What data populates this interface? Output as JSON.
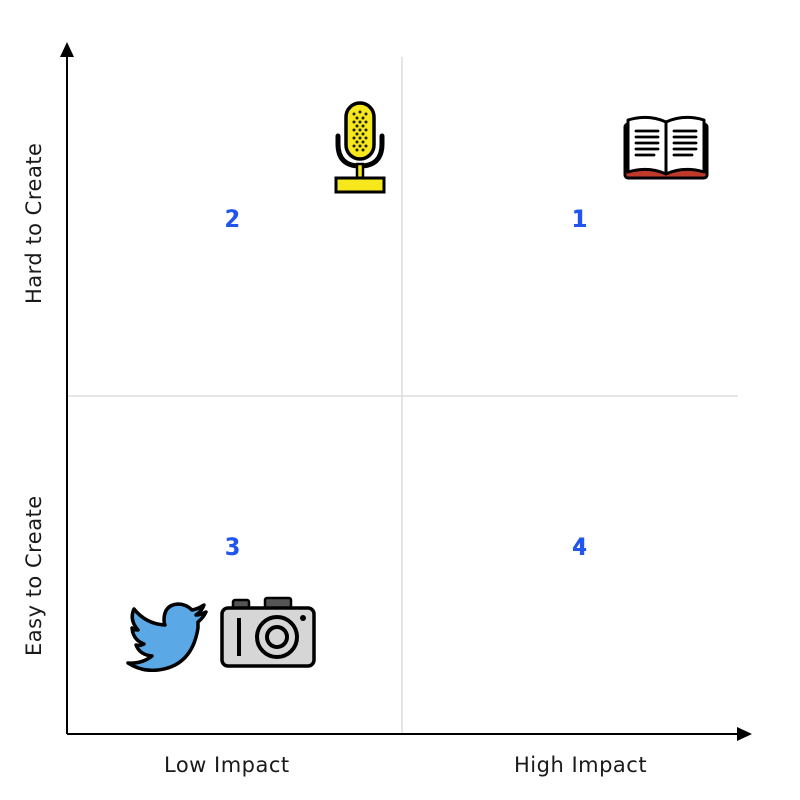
{
  "axes": {
    "x_low": "Low Impact",
    "x_high": "High Impact",
    "y_high": "Hard to Create",
    "y_low": "Easy to Create"
  },
  "quadrants": [
    {
      "id": "q1",
      "number": "1"
    },
    {
      "id": "q2",
      "number": "2"
    },
    {
      "id": "q3",
      "number": "3"
    },
    {
      "id": "q4",
      "number": "4"
    }
  ],
  "icons": {
    "book": "book-icon",
    "microphone": "microphone-icon",
    "twitter": "twitter-bird-icon",
    "camera": "camera-icon"
  },
  "colors": {
    "number": "#2255ee",
    "axis": "#000000",
    "divider": "#dddddd",
    "mic_yellow": "#f6e81c",
    "book_red": "#c0392b",
    "twitter_blue": "#5aa9e6",
    "camera_gray": "#d6d6d6"
  }
}
